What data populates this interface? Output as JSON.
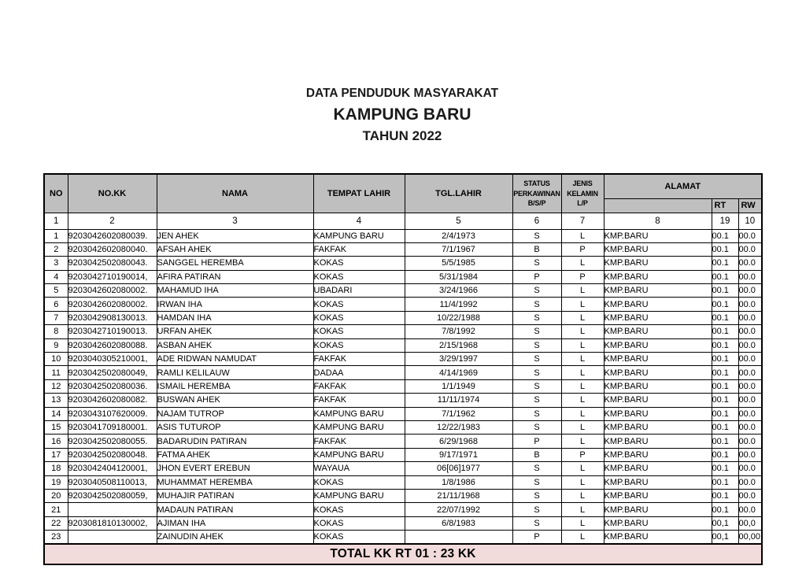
{
  "title": {
    "line1": "DATA PENDUDUK MASYARAKAT",
    "line2": "KAMPUNG BARU",
    "line3": "TAHUN 2022"
  },
  "table": {
    "headers": {
      "no": "NO",
      "nokk": "NO.KK",
      "nama": "NAMA",
      "tempat_lahir": "TEMPAT LAHIR",
      "tgl_lahir": "TGL.LAHIR",
      "status_line1": "STATUS",
      "status_line2": "PERKAWINAN",
      "status_line3": "B/S/P",
      "jenis_line1": "JENIS",
      "jenis_line2": "KELAMIN",
      "jenis_line3": "L/P",
      "alamat": "ALAMAT",
      "rt": "RT",
      "rw": "RW"
    },
    "column_numbers": [
      "1",
      "2",
      "3",
      "4",
      "5",
      "6",
      "7",
      "8",
      "19",
      "10"
    ],
    "rows": [
      {
        "no": "1",
        "nokk": "9203042602080039.",
        "nama": "JEN AHEK",
        "tempat": "KAMPUNG BARU",
        "tgl": "2/4/1973",
        "status": "S",
        "jk": "L",
        "alamat": "KMP.BARU",
        "rt": "00.1",
        "rw": "00.0"
      },
      {
        "no": "2",
        "nokk": "9203042602080040.",
        "nama": "AFSAH AHEK",
        "tempat": "FAKFAK",
        "tgl": "7/1/1967",
        "status": "B",
        "jk": "P",
        "alamat": "KMP.BARU",
        "rt": "00.1",
        "rw": "00.0"
      },
      {
        "no": "3",
        "nokk": "9203042502080043.",
        "nama": "SANGGEL HEREMBA",
        "tempat": "KOKAS",
        "tgl": "5/5/1985",
        "status": "S",
        "jk": "L",
        "alamat": "KMP.BARU",
        "rt": "00.1",
        "rw": "00.0"
      },
      {
        "no": "4",
        "nokk": "9203042710190014,",
        "nama": "AFIRA PATIRAN",
        "tempat": "KOKAS",
        "tgl": "5/31/1984",
        "status": "P",
        "jk": "P",
        "alamat": "KMP.BARU",
        "rt": "00.1",
        "rw": "00.0"
      },
      {
        "no": "5",
        "nokk": "9203042602080002.",
        "nama": "MAHAMUD IHA",
        "tempat": "UBADARI",
        "tgl": "3/24/1966",
        "status": "S",
        "jk": "L",
        "alamat": "KMP.BARU",
        "rt": "00.1",
        "rw": "00.0"
      },
      {
        "no": "6",
        "nokk": "9203042602080002.",
        "nama": "IRWAN IHA",
        "tempat": "KOKAS",
        "tgl": "11/4/1992",
        "status": "S",
        "jk": "L",
        "alamat": "KMP.BARU",
        "rt": "00.1",
        "rw": "00.0"
      },
      {
        "no": "7",
        "nokk": "9203042908130013.",
        "nama": "HAMDAN IHA",
        "tempat": "KOKAS",
        "tgl": "10/22/1988",
        "status": "S",
        "jk": "L",
        "alamat": "KMP.BARU",
        "rt": "00.1",
        "rw": "00.0"
      },
      {
        "no": "8",
        "nokk": "9203042710190013.",
        "nama": "URFAN AHEK",
        "tempat": "KOKAS",
        "tgl": "7/8/1992",
        "status": "S",
        "jk": "L",
        "alamat": "KMP.BARU",
        "rt": "00.1",
        "rw": "00.0"
      },
      {
        "no": "9",
        "nokk": "9203042602080088.",
        "nama": "ASBAN AHEK",
        "tempat": "KOKAS",
        "tgl": "2/15/1968",
        "status": "S",
        "jk": "L",
        "alamat": "KMP.BARU",
        "rt": "00.1",
        "rw": "00.0"
      },
      {
        "no": "10",
        "nokk": "9203040305210001,",
        "nama": "ADE RIDWAN NAMUDAT",
        "tempat": "FAKFAK",
        "tgl": "3/29/1997",
        "status": "S",
        "jk": "L",
        "alamat": "KMP.BARU",
        "rt": "00.1",
        "rw": "00.0"
      },
      {
        "no": "11",
        "nokk": "9203042502080049,",
        "nama": "RAMLI KELILAUW",
        "tempat": "DADAA",
        "tgl": "4/14/1969",
        "status": "S",
        "jk": "L",
        "alamat": "KMP.BARU",
        "rt": "00.1",
        "rw": "00.0"
      },
      {
        "no": "12",
        "nokk": "9203042502080036.",
        "nama": "ISMAIL HEREMBA",
        "tempat": "FAKFAK",
        "tgl": "1/1/1949",
        "status": "S",
        "jk": "L",
        "alamat": "KMP.BARU",
        "rt": "00.1",
        "rw": "00.0"
      },
      {
        "no": "13",
        "nokk": "9203042602080082.",
        "nama": "BUSWAN AHEK",
        "tempat": "FAKFAK",
        "tgl": "11/11/1974",
        "status": "S",
        "jk": "L",
        "alamat": "KMP.BARU",
        "rt": "00.1",
        "rw": "00.0"
      },
      {
        "no": "14",
        "nokk": "9203043107620009.",
        "nama": "NAJAM TUTROP",
        "tempat": "KAMPUNG BARU",
        "tgl": "7/1/1962",
        "status": "S",
        "jk": "L",
        "alamat": "KMP.BARU",
        "rt": "00.1",
        "rw": "00.0"
      },
      {
        "no": "15",
        "nokk": "9203041709180001.",
        "nama": "ASIS TUTUROP",
        "tempat": "KAMPUNG BARU",
        "tgl": "12/22/1983",
        "status": "S",
        "jk": "L",
        "alamat": "KMP.BARU",
        "rt": "00.1",
        "rw": "00.0"
      },
      {
        "no": "16",
        "nokk": "9203042502080055.",
        "nama": "BADARUDIN PATIRAN",
        "tempat": "FAKFAK",
        "tgl": "6/29/1968",
        "status": "P",
        "jk": "L",
        "alamat": "KMP.BARU",
        "rt": "00.1",
        "rw": "00.0"
      },
      {
        "no": "17",
        "nokk": "9203042502080048.",
        "nama": "FATMA AHEK",
        "tempat": "KAMPUNG BARU",
        "tgl": "9/17/1971",
        "status": "B",
        "jk": "P",
        "alamat": "KMP.BARU",
        "rt": "00.1",
        "rw": "00.0"
      },
      {
        "no": "18",
        "nokk": "9203042404120001,",
        "nama": "JHON EVERT EREBUN",
        "tempat": "WAYAUA",
        "tgl": "06[06]1977",
        "status": "S",
        "jk": "L",
        "alamat": "KMP.BARU",
        "rt": "00.1",
        "rw": "00.0"
      },
      {
        "no": "19",
        "nokk": "9203040508110013,",
        "nama": "MUHAMMAT HEREMBA",
        "tempat": "KOKAS",
        "tgl": "1/8/1986",
        "status": "S",
        "jk": "L",
        "alamat": "KMP.BARU",
        "rt": "00.1",
        "rw": "00.0"
      },
      {
        "no": "20",
        "nokk": "9203042502080059,",
        "nama": "MUHAJIR PATIRAN",
        "tempat": "KAMPUNG BARU",
        "tgl": "21/11/1968",
        "status": "S",
        "jk": "L",
        "alamat": "KMP.BARU",
        "rt": "00.1",
        "rw": "00.0"
      },
      {
        "no": "21",
        "nokk": "",
        "nama": "MADAUN PATIRAN",
        "tempat": "KOKAS",
        "tgl": "22/07/1992",
        "status": "S",
        "jk": "L",
        "alamat": "KMP.BARU",
        "rt": "00.1",
        "rw": "00.0"
      },
      {
        "no": "22",
        "nokk": "9203081810130002,",
        "nama": "AJIMAN IHA",
        "tempat": "KOKAS",
        "tgl": "6/8/1983",
        "status": "S",
        "jk": "L",
        "alamat": "KMP.BARU",
        "rt": "00,1",
        "rw": "00,0"
      },
      {
        "no": "23",
        "nokk": "",
        "nama": "ZAINUDIN AHEK",
        "tempat": "KOKAS",
        "tgl": "",
        "status": "P",
        "jk": "L",
        "alamat": "KMP.BARU",
        "rt": "00,1",
        "rw": "00,00"
      }
    ],
    "footer": "TOTAL KK RT 01 : 23 KK"
  },
  "colors": {
    "header_bg": "#bfbfbf",
    "footer_bg": "#f2dcdb",
    "border": "#000000"
  }
}
